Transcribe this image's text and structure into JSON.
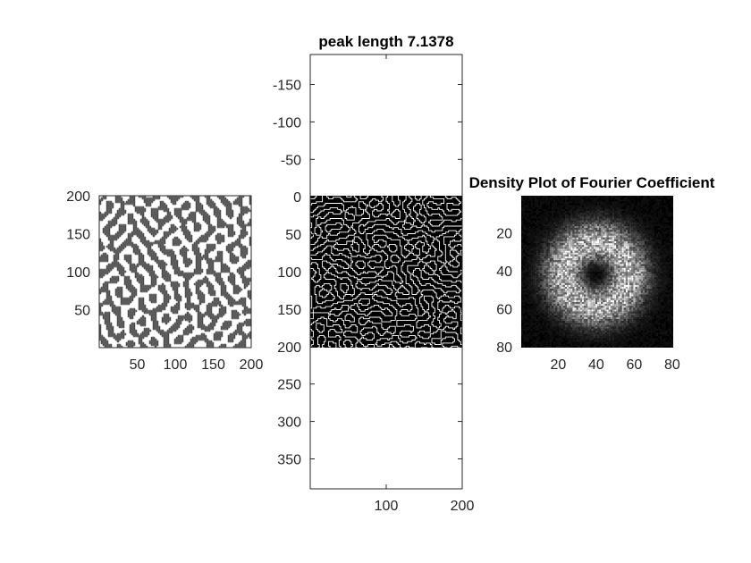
{
  "figure": {
    "background": "#ffffff",
    "axis_color": "#262626"
  },
  "chart_data": [
    {
      "type": "heatmap",
      "title": "",
      "xlabel": "",
      "ylabel": "",
      "description_values": "binary labyrinth pattern (two phases)",
      "colors": [
        "#ffffff",
        "#808080"
      ],
      "xlim": [
        0,
        200
      ],
      "ylim": [
        0,
        200
      ],
      "y_direction": "normal",
      "xticks": [
        50,
        100,
        150,
        200
      ],
      "yticks": [
        50,
        100,
        150,
        200
      ],
      "xtick_labels": [
        "50",
        "100",
        "150",
        "200"
      ],
      "ytick_labels": [
        "50",
        "100",
        "150",
        "200"
      ],
      "box": true
    },
    {
      "type": "heatmap",
      "title": "peak length 7.1378",
      "xlabel": "",
      "ylabel": "",
      "colors": [
        "#000000",
        "#ffffff"
      ],
      "image_xlim": [
        0,
        200
      ],
      "image_ylim": [
        0,
        200
      ],
      "xlim": [
        0,
        200
      ],
      "ylim": [
        -190,
        390
      ],
      "y_direction": "reverse",
      "xticks": [
        100,
        200
      ],
      "yticks": [
        -150,
        -100,
        -50,
        0,
        50,
        100,
        150,
        200,
        250,
        300,
        350
      ],
      "xtick_labels": [
        "100",
        "200"
      ],
      "ytick_labels": [
        "-150",
        "-100",
        "-50",
        "0",
        "50",
        "100",
        "150",
        "200",
        "250",
        "300",
        "350"
      ],
      "box": true
    },
    {
      "type": "heatmap",
      "title": "Density Plot of Fourier Coefficient",
      "xlabel": "",
      "ylabel": "",
      "colormap": "gray",
      "grid_size": [
        80,
        80
      ],
      "xlim": [
        0.5,
        80.5
      ],
      "ylim": [
        0.5,
        80.5
      ],
      "y_direction": "reverse",
      "ring_center": [
        40,
        42
      ],
      "xticks": [
        20,
        40,
        60,
        80
      ],
      "yticks": [
        20,
        40,
        60,
        80
      ],
      "xtick_labels": [
        "20",
        "40",
        "60",
        "80"
      ],
      "ytick_labels": [
        "20",
        "40",
        "60",
        "80"
      ],
      "box": false
    }
  ]
}
